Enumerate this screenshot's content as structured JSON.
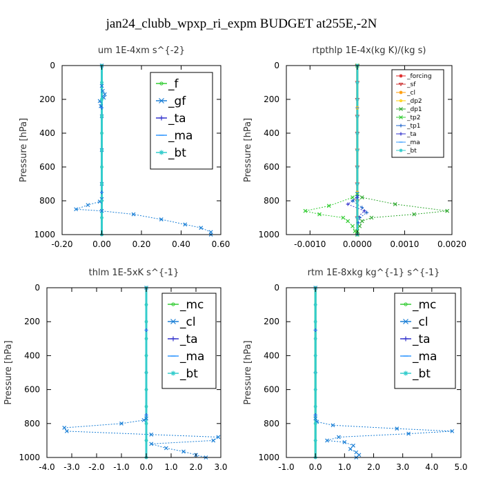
{
  "title": "jan24_clubb_wpxp_ri_expm  BUDGET at255E,-2N",
  "chart_data": [
    {
      "type": "line",
      "title": "um   1E-4xm s^{-2}",
      "ylabel": "Pressure [hPa]",
      "xlim": [
        -0.2,
        0.6
      ],
      "ylim": [
        1000,
        0
      ],
      "y_reversed": true,
      "xticks": [
        -0.2,
        0.0,
        0.2,
        0.4,
        0.6
      ],
      "xtick_labels": [
        "-0.20",
        "0.00",
        "0.20",
        "0.40",
        "0.60"
      ],
      "yticks": [
        0,
        200,
        400,
        600,
        800,
        1000
      ],
      "ytick_labels": [
        "0",
        "200",
        "400",
        "600",
        "800",
        "1000"
      ],
      "legend": {
        "placement": "top-right",
        "size": "large"
      },
      "series": [
        {
          "name": "_f",
          "color": "#33cc33",
          "marker": "o",
          "x": [
            0,
            0,
            0,
            0,
            0,
            0,
            0,
            0,
            0,
            0,
            0
          ],
          "y": [
            0,
            100,
            200,
            300,
            400,
            500,
            600,
            700,
            800,
            900,
            1000
          ]
        },
        {
          "name": "_gf",
          "color": "#1a7fd6",
          "marker": "x",
          "x": [
            0.0,
            0.0,
            0.005,
            0.015,
            0.01,
            -0.01,
            -0.005,
            0.0,
            0.0,
            0.0,
            0.0,
            -0.01,
            -0.07,
            -0.13,
            0.0,
            0.16,
            0.3,
            0.42,
            0.5,
            0.55,
            0.55
          ],
          "y": [
            0,
            120,
            150,
            170,
            190,
            210,
            240,
            300,
            500,
            700,
            790,
            805,
            825,
            850,
            860,
            880,
            910,
            940,
            960,
            985,
            1000
          ]
        },
        {
          "name": "_ta",
          "color": "#3333cc",
          "marker": "+",
          "x": [
            0,
            0,
            0,
            0,
            0
          ],
          "y": [
            0,
            250,
            500,
            750,
            1000
          ]
        },
        {
          "name": "_ma",
          "color": "#3399ff",
          "marker": "-",
          "x": [
            0,
            0,
            0,
            0,
            0
          ],
          "y": [
            0,
            250,
            500,
            750,
            1000
          ]
        },
        {
          "name": "_bt",
          "color": "#33cccc",
          "marker": "*",
          "x": [
            0,
            0,
            0,
            0,
            0,
            0,
            0,
            0,
            0,
            0,
            0
          ],
          "y": [
            0,
            100,
            200,
            300,
            400,
            500,
            600,
            700,
            800,
            900,
            1000
          ]
        }
      ]
    },
    {
      "type": "line",
      "title": "rtpthlp   1E-4x(kg K)/(kg s)",
      "ylabel": "Pressure [hPa]",
      "xlim": [
        -0.0015,
        0.002
      ],
      "ylim": [
        1000,
        0
      ],
      "y_reversed": true,
      "xticks": [
        -0.001,
        0.0,
        0.001,
        0.002
      ],
      "xtick_labels": [
        "-0.0010",
        "0.0000",
        "0.0010",
        "0.0020"
      ],
      "yticks": [
        0,
        200,
        400,
        600,
        800,
        1000
      ],
      "ytick_labels": [
        "0",
        "200",
        "400",
        "600",
        "800",
        "1000"
      ],
      "legend": {
        "placement": "top-right",
        "size": "small"
      },
      "series": [
        {
          "name": "_forcing",
          "color": "#dd2222",
          "marker": "*",
          "x": [
            0,
            0,
            0,
            0,
            0,
            0,
            0,
            0,
            0,
            0,
            0
          ],
          "y": [
            0,
            100,
            200,
            300,
            400,
            500,
            600,
            700,
            800,
            900,
            1000
          ]
        },
        {
          "name": "_sf",
          "color": "#cc3333",
          "marker": "v",
          "x": [
            0,
            0,
            0,
            0,
            0,
            0,
            0,
            0,
            0,
            0,
            0
          ],
          "y": [
            0,
            100,
            200,
            300,
            400,
            500,
            600,
            700,
            800,
            900,
            1000
          ]
        },
        {
          "name": "_cl",
          "color": "#ff9900",
          "marker": "*",
          "x": [
            0,
            0,
            0,
            0,
            0
          ],
          "y": [
            0,
            250,
            500,
            750,
            1000
          ]
        },
        {
          "name": "_dp2",
          "color": "#ffcc00",
          "marker": "o",
          "x": [
            0,
            0,
            0,
            0,
            0
          ],
          "y": [
            0,
            250,
            500,
            750,
            1000
          ]
        },
        {
          "name": "_dp1",
          "color": "#33aa33",
          "marker": "x",
          "x": [
            0,
            0,
            0.0001,
            0.0008,
            0.0019,
            0.0012,
            0.0003,
            0.0001,
            5e-05,
            0,
            0
          ],
          "y": [
            0,
            760,
            780,
            820,
            860,
            880,
            900,
            920,
            950,
            980,
            1000
          ]
        },
        {
          "name": "_tp2",
          "color": "#33cc33",
          "marker": "x",
          "x": [
            0,
            0,
            -0.0001,
            -0.0006,
            -0.0011,
            -0.0008,
            -0.0003,
            -0.0002,
            -0.0001,
            -5e-05,
            0
          ],
          "y": [
            0,
            760,
            780,
            830,
            860,
            880,
            900,
            920,
            950,
            980,
            1000
          ]
        },
        {
          "name": "_tp1",
          "color": "#2266cc",
          "marker": "+",
          "x": [
            0,
            0,
            -0.0001,
            0.0001,
            0.0002,
            5e-05,
            2e-05,
            0
          ],
          "y": [
            0,
            770,
            800,
            840,
            870,
            900,
            930,
            1000
          ]
        },
        {
          "name": "_ta",
          "color": "#3333cc",
          "marker": "+",
          "x": [
            0,
            0,
            -0.0002,
            0.00015,
            0,
            0
          ],
          "y": [
            0,
            780,
            820,
            860,
            900,
            1000
          ]
        },
        {
          "name": "_ma",
          "color": "#3399ff",
          "marker": "-",
          "x": [
            0,
            0,
            0,
            0,
            0
          ],
          "y": [
            0,
            250,
            500,
            750,
            1000
          ]
        },
        {
          "name": "_bt",
          "color": "#33cccc",
          "marker": "*",
          "x": [
            0,
            0,
            0,
            0,
            0,
            0,
            0,
            0,
            0,
            0,
            0
          ],
          "y": [
            0,
            100,
            200,
            300,
            400,
            500,
            600,
            700,
            800,
            900,
            1000
          ]
        }
      ]
    },
    {
      "type": "line",
      "title": "thlm   1E-5xK s^{-1}",
      "ylabel": "Pressure [hPa]",
      "xlim": [
        -4.0,
        3.0
      ],
      "ylim": [
        1000,
        0
      ],
      "y_reversed": true,
      "xticks": [
        -4,
        -3,
        -2,
        -1,
        0,
        1,
        2,
        3
      ],
      "xtick_labels": [
        "-4.0",
        "-3.0",
        "-2.0",
        "-1.0",
        "0.0",
        "1.0",
        "2.0",
        "3.0"
      ],
      "yticks": [
        0,
        200,
        400,
        600,
        800,
        1000
      ],
      "ytick_labels": [
        "0",
        "200",
        "400",
        "600",
        "800",
        "1000"
      ],
      "legend": {
        "placement": "top-right",
        "size": "large"
      },
      "series": [
        {
          "name": "_mc",
          "color": "#33cc33",
          "marker": "o",
          "x": [
            0,
            0,
            0,
            0,
            0,
            0,
            0,
            0,
            0,
            0,
            0
          ],
          "y": [
            0,
            100,
            200,
            300,
            400,
            500,
            600,
            700,
            800,
            900,
            1000
          ]
        },
        {
          "name": "_cl",
          "color": "#1a7fd6",
          "marker": "x",
          "x": [
            0,
            0,
            -0.1,
            -1.0,
            -3.3,
            -3.2,
            0.2,
            2.9,
            2.7,
            0.2,
            0.8,
            1.5,
            2.0,
            2.4
          ],
          "y": [
            0,
            770,
            780,
            800,
            825,
            845,
            865,
            880,
            900,
            920,
            945,
            965,
            985,
            1000
          ]
        },
        {
          "name": "_ta",
          "color": "#3333cc",
          "marker": "+",
          "x": [
            0,
            0,
            0,
            0,
            0
          ],
          "y": [
            0,
            250,
            500,
            750,
            1000
          ]
        },
        {
          "name": "_ma",
          "color": "#3399ff",
          "marker": "-",
          "x": [
            0,
            0,
            0,
            0,
            0
          ],
          "y": [
            0,
            250,
            500,
            750,
            1000
          ]
        },
        {
          "name": "_bt",
          "color": "#33cccc",
          "marker": "*",
          "x": [
            0,
            0,
            0,
            0,
            0,
            0,
            0,
            0,
            0,
            0,
            0
          ],
          "y": [
            0,
            100,
            200,
            300,
            400,
            500,
            600,
            700,
            800,
            900,
            1000
          ]
        }
      ]
    },
    {
      "type": "line",
      "title": "rtm   1E-8xkg kg^{-1} s^{-1}",
      "ylabel": "Pressure [hPa]",
      "xlim": [
        -1.0,
        5.0
      ],
      "ylim": [
        1000,
        0
      ],
      "y_reversed": true,
      "xticks": [
        -1,
        0,
        1,
        2,
        3,
        4,
        5
      ],
      "xtick_labels": [
        "-1.0",
        "0.0",
        "1.0",
        "2.0",
        "3.0",
        "4.0",
        "5.0"
      ],
      "yticks": [
        0,
        200,
        400,
        600,
        800,
        1000
      ],
      "ytick_labels": [
        "0",
        "200",
        "400",
        "600",
        "800",
        "1000"
      ],
      "legend": {
        "placement": "top-right",
        "size": "large"
      },
      "series": [
        {
          "name": "_mc",
          "color": "#33cc33",
          "marker": "o",
          "x": [
            0,
            0,
            0,
            0,
            0,
            0,
            0,
            0,
            0,
            0,
            0
          ],
          "y": [
            0,
            100,
            200,
            300,
            400,
            500,
            600,
            700,
            800,
            900,
            1000
          ]
        },
        {
          "name": "_cl",
          "color": "#1a7fd6",
          "marker": "x",
          "x": [
            0,
            0,
            0.05,
            0.6,
            2.8,
            4.7,
            3.2,
            0.8,
            0.4,
            1.0,
            1.3,
            1.2,
            1.4,
            1.5,
            1.4
          ],
          "y": [
            0,
            770,
            790,
            810,
            830,
            845,
            860,
            880,
            900,
            910,
            930,
            950,
            970,
            985,
            1000
          ]
        },
        {
          "name": "_ta",
          "color": "#3333cc",
          "marker": "+",
          "x": [
            0,
            0,
            0,
            0,
            0
          ],
          "y": [
            0,
            250,
            500,
            750,
            1000
          ]
        },
        {
          "name": "_ma",
          "color": "#3399ff",
          "marker": "-",
          "x": [
            0,
            0,
            0,
            0,
            0
          ],
          "y": [
            0,
            250,
            500,
            750,
            1000
          ]
        },
        {
          "name": "_bt",
          "color": "#33cccc",
          "marker": "*",
          "x": [
            0,
            0,
            0,
            0,
            0,
            0,
            0,
            0,
            0,
            0,
            0
          ],
          "y": [
            0,
            100,
            200,
            300,
            400,
            500,
            600,
            700,
            800,
            900,
            1000
          ]
        }
      ]
    }
  ]
}
